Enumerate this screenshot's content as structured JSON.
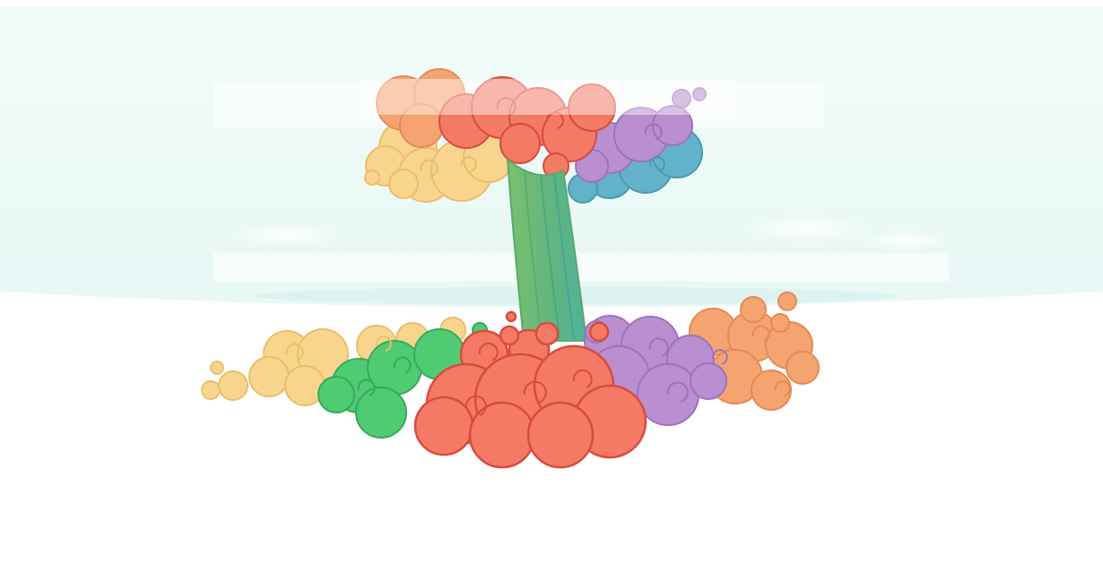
{
  "scene": {
    "subject": "rainbow-smoke-mushroom-cloud",
    "colors": {
      "sky": "#f0fbf8",
      "red": "#f47a66",
      "red_outline": "#d84c3c",
      "orange": "#f6a46f",
      "yellow": "#f8d58c",
      "green": "#4fcb74",
      "purple": "#b98fd0",
      "blue": "#62b3c9",
      "stem_green": "#7ac06f",
      "stem_teal": "#4fb39a"
    }
  }
}
